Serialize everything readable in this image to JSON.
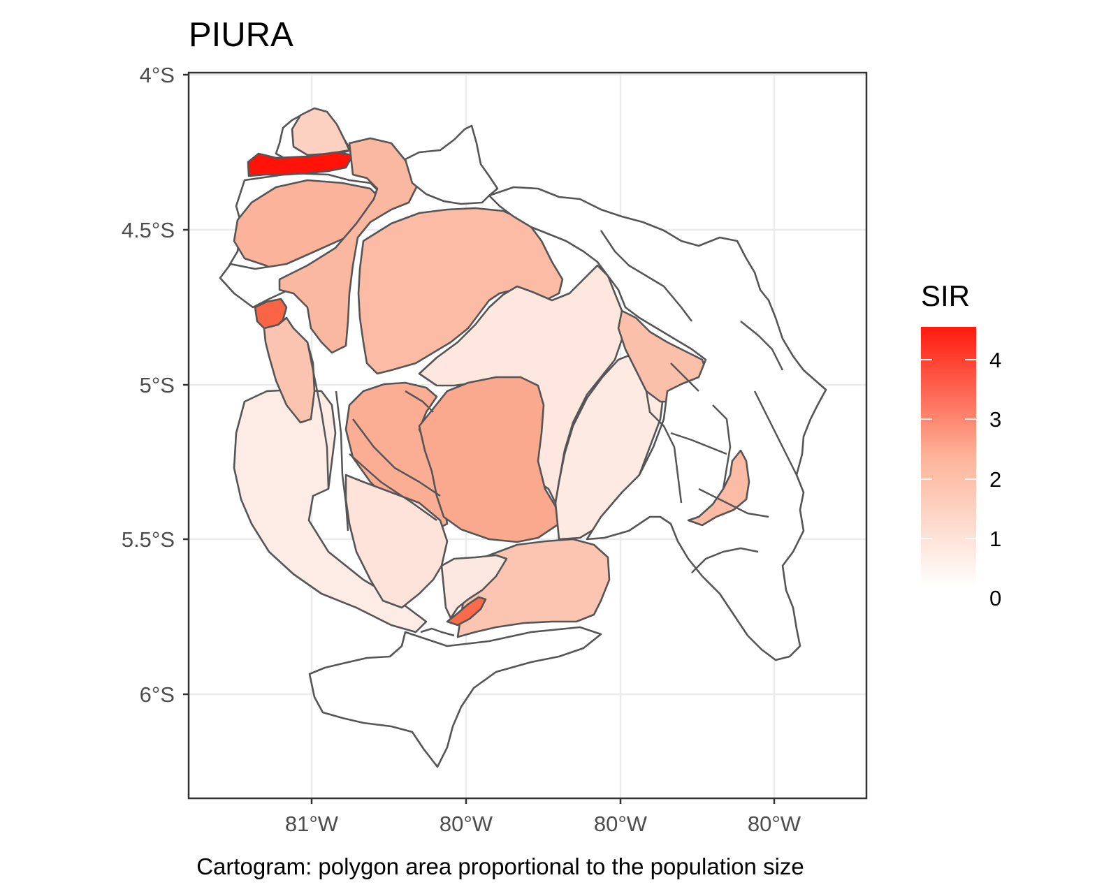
{
  "title": "PIURA",
  "caption": "Cartogram: polygon area proportional to the population size",
  "legend": {
    "title": "SIR",
    "ticks": [
      "0",
      "1",
      "2",
      "3",
      "4"
    ],
    "color_low": "#ffffff",
    "color_high": "#ff0000"
  },
  "axes": {
    "y_ticks": [
      "4°S",
      "4.5°S",
      "5°S",
      "5.5°S",
      "6°S"
    ],
    "x_ticks": [
      "81°W",
      "80°W",
      "80°W",
      "80°W"
    ]
  },
  "colors": {
    "panel_border": "#333333",
    "grid": "#ebebeb",
    "region_stroke": "#555555"
  }
}
